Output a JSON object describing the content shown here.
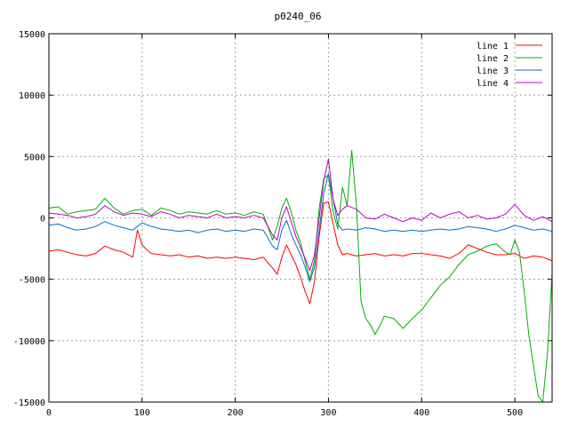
{
  "chart_data": {
    "type": "line",
    "title": "p0240_06",
    "xlabel": "",
    "ylabel": "",
    "xlim": [
      0,
      540
    ],
    "ylim": [
      -15000,
      15000
    ],
    "xticks": [
      0,
      100,
      200,
      300,
      400,
      500
    ],
    "yticks": [
      -15000,
      -10000,
      -5000,
      0,
      5000,
      10000,
      15000
    ],
    "grid": true,
    "legend_position": "top-right",
    "series": [
      {
        "name": "line 1",
        "color": "#ff0000",
        "x": [
          0,
          10,
          20,
          30,
          40,
          50,
          60,
          70,
          80,
          90,
          95,
          100,
          105,
          110,
          120,
          130,
          140,
          150,
          160,
          170,
          180,
          190,
          200,
          210,
          220,
          230,
          240,
          245,
          250,
          255,
          260,
          265,
          270,
          275,
          280,
          285,
          290,
          295,
          300,
          305,
          310,
          315,
          320,
          330,
          340,
          350,
          360,
          370,
          380,
          390,
          400,
          410,
          420,
          430,
          440,
          450,
          460,
          470,
          480,
          490,
          500,
          510,
          520,
          530,
          540
        ],
        "y": [
          -2700,
          -2600,
          -2800,
          -3000,
          -3100,
          -2900,
          -2300,
          -2600,
          -2800,
          -3200,
          -1000,
          -2200,
          -2600,
          -2900,
          -3000,
          -3100,
          -3000,
          -3200,
          -3100,
          -3300,
          -3200,
          -3300,
          -3200,
          -3300,
          -3400,
          -3200,
          -4100,
          -4600,
          -3200,
          -2200,
          -3000,
          -3800,
          -4800,
          -6000,
          -7000,
          -5200,
          -1500,
          1200,
          1300,
          -500,
          -2200,
          -3000,
          -2900,
          -3100,
          -3000,
          -2900,
          -3100,
          -3000,
          -3100,
          -2900,
          -2900,
          -3000,
          -3100,
          -3300,
          -2900,
          -2200,
          -2500,
          -2800,
          -3000,
          -3000,
          -2900,
          -3300,
          -3100,
          -3200,
          -3500
        ]
      },
      {
        "name": "line 2",
        "color": "#00b000",
        "x": [
          0,
          10,
          20,
          30,
          40,
          50,
          60,
          70,
          80,
          90,
          100,
          110,
          120,
          130,
          140,
          150,
          160,
          170,
          180,
          190,
          200,
          210,
          220,
          230,
          240,
          245,
          250,
          255,
          260,
          265,
          270,
          275,
          280,
          285,
          290,
          295,
          300,
          305,
          310,
          315,
          320,
          325,
          330,
          335,
          340,
          345,
          350,
          355,
          360,
          370,
          380,
          390,
          400,
          410,
          420,
          430,
          440,
          450,
          460,
          470,
          480,
          490,
          495,
          500,
          505,
          510,
          515,
          520,
          525,
          530,
          535,
          540
        ],
        "y": [
          800,
          900,
          300,
          500,
          600,
          700,
          1600,
          800,
          300,
          600,
          700,
          200,
          800,
          600,
          300,
          500,
          400,
          300,
          600,
          300,
          400,
          200,
          500,
          300,
          -1800,
          -700,
          800,
          1600,
          500,
          -1000,
          -2000,
          -3500,
          -5000,
          -3500,
          800,
          3200,
          3500,
          500,
          -900,
          2500,
          1000,
          5500,
          1000,
          -6800,
          -8200,
          -8700,
          -9500,
          -8800,
          -8000,
          -8200,
          -9000,
          -8200,
          -7500,
          -6500,
          -5500,
          -4800,
          -3800,
          -3000,
          -2700,
          -2300,
          -2100,
          -2800,
          -3000,
          -1800,
          -2800,
          -6000,
          -9500,
          -12000,
          -14500,
          -15000,
          -11000,
          -4500
        ]
      },
      {
        "name": "line 3",
        "color": "#0070cc",
        "x": [
          0,
          10,
          20,
          30,
          40,
          50,
          60,
          70,
          80,
          90,
          100,
          110,
          120,
          130,
          140,
          150,
          160,
          170,
          180,
          190,
          200,
          210,
          220,
          230,
          240,
          245,
          250,
          255,
          260,
          265,
          270,
          275,
          280,
          285,
          290,
          295,
          300,
          305,
          310,
          315,
          320,
          330,
          340,
          350,
          360,
          370,
          380,
          390,
          400,
          410,
          420,
          430,
          440,
          450,
          460,
          470,
          480,
          490,
          500,
          510,
          520,
          530,
          540
        ],
        "y": [
          -600,
          -500,
          -800,
          -1000,
          -900,
          -700,
          -300,
          -600,
          -800,
          -1000,
          -400,
          -700,
          -900,
          -1000,
          -1100,
          -1000,
          -1200,
          -1000,
          -900,
          -1100,
          -1000,
          -1100,
          -900,
          -1000,
          -2300,
          -2600,
          -1000,
          -200,
          -1300,
          -2200,
          -3000,
          -4000,
          -5200,
          -4000,
          -1000,
          2000,
          3600,
          1500,
          -500,
          -1000,
          -900,
          -1000,
          -800,
          -900,
          -1100,
          -1000,
          -1100,
          -1000,
          -1100,
          -1000,
          -900,
          -1000,
          -900,
          -700,
          -800,
          -900,
          -1100,
          -900,
          -600,
          -800,
          -1000,
          -900,
          -1100
        ]
      },
      {
        "name": "line 4",
        "color": "#c000c0",
        "x": [
          0,
          10,
          20,
          30,
          40,
          50,
          60,
          70,
          80,
          90,
          100,
          110,
          120,
          130,
          140,
          150,
          160,
          170,
          180,
          190,
          200,
          210,
          220,
          230,
          240,
          245,
          250,
          255,
          260,
          265,
          270,
          275,
          280,
          285,
          290,
          295,
          300,
          305,
          310,
          315,
          320,
          330,
          340,
          350,
          360,
          370,
          380,
          390,
          400,
          410,
          420,
          430,
          440,
          450,
          460,
          470,
          480,
          490,
          500,
          510,
          520,
          530,
          540
        ],
        "y": [
          400,
          300,
          200,
          0,
          100,
          300,
          1000,
          500,
          200,
          400,
          300,
          100,
          500,
          300,
          0,
          200,
          100,
          0,
          300,
          0,
          100,
          0,
          200,
          0,
          -1400,
          -1800,
          0,
          900,
          -300,
          -1500,
          -2400,
          -3300,
          -4300,
          -3000,
          0,
          3000,
          4800,
          1500,
          200,
          700,
          1000,
          700,
          0,
          -100,
          300,
          0,
          -300,
          0,
          -200,
          400,
          0,
          300,
          500,
          0,
          200,
          -100,
          0,
          300,
          1100,
          200,
          -200,
          100,
          -300
        ]
      }
    ]
  }
}
